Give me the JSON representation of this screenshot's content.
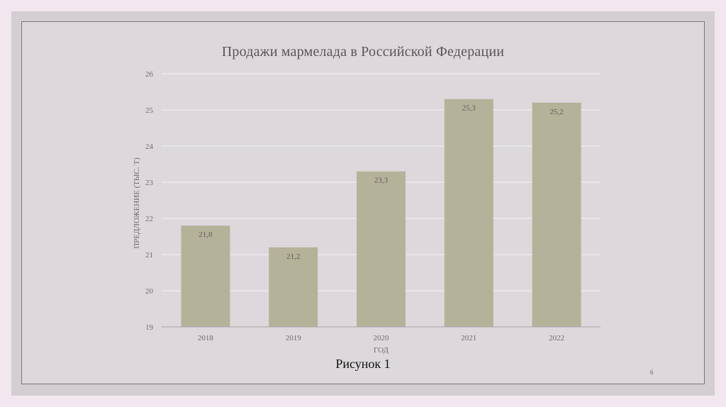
{
  "slide": {
    "caption": "Рисунок 1",
    "page_number": "6"
  },
  "chart_data": {
    "type": "bar",
    "title": "Продажи мармелада в Российской Федерации",
    "xlabel": "ГОД",
    "ylabel": "ПРЕДЛОЖЕНИЕ (ТЫС. Т)",
    "categories": [
      "2018",
      "2019",
      "2020",
      "2021",
      "2022"
    ],
    "values": [
      21.8,
      21.2,
      23.3,
      25.3,
      25.2
    ],
    "data_labels": [
      "21,8",
      "21,2",
      "23,3",
      "25,3",
      "25,2"
    ],
    "ylim": [
      19,
      26
    ],
    "yticks": [
      19,
      20,
      21,
      22,
      23,
      24,
      25,
      26
    ],
    "grid": true,
    "legend": "none",
    "bar_color": "#b5b29a"
  }
}
